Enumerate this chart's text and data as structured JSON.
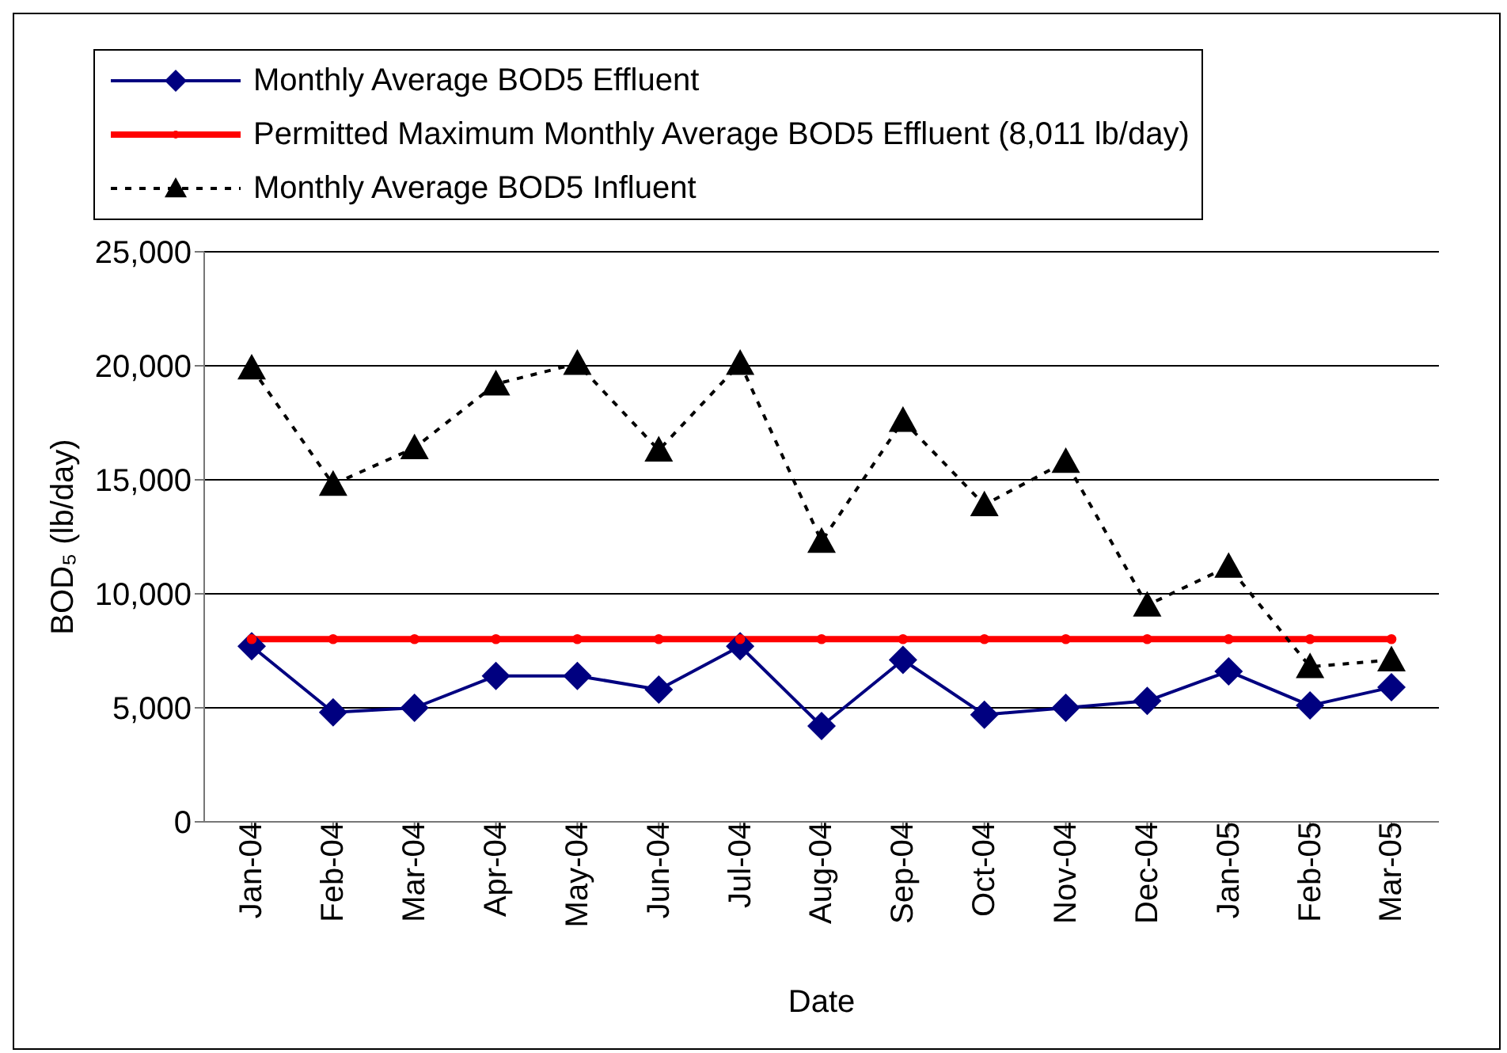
{
  "chart_data": {
    "type": "line",
    "xlabel": "Date",
    "ylabel": "BOD₅ (lb/day)",
    "categories": [
      "Jan-04",
      "Feb-04",
      "Mar-04",
      "Apr-04",
      "May-04",
      "Jun-04",
      "Jul-04",
      "Aug-04",
      "Sep-04",
      "Oct-04",
      "Nov-04",
      "Dec-04",
      "Jan-05",
      "Feb-05",
      "Mar-05"
    ],
    "series": [
      {
        "name": "Monthly Average BOD5 Effluent",
        "color": "#000080",
        "marker": "diamond",
        "line_style": "solid",
        "values": [
          7700,
          4800,
          5000,
          6400,
          6400,
          5800,
          7700,
          4200,
          7100,
          4700,
          5000,
          5300,
          6600,
          5100,
          5900
        ]
      },
      {
        "name": "Permitted Maximum Monthly Average BOD5 Effluent (8,011 lb/day)",
        "color": "#ff0000",
        "marker": "circle",
        "line_style": "solid",
        "values": [
          8011,
          8011,
          8011,
          8011,
          8011,
          8011,
          8011,
          8011,
          8011,
          8011,
          8011,
          8011,
          8011,
          8011,
          8011
        ]
      },
      {
        "name": "Monthly Average BOD5 Influent",
        "color": "#000000",
        "marker": "triangle",
        "line_style": "dashed",
        "values": [
          19900,
          14800,
          16400,
          19200,
          20100,
          16300,
          20100,
          12300,
          17600,
          13900,
          15800,
          9500,
          11200,
          6800,
          7100
        ]
      }
    ],
    "ylim": [
      0,
      25000
    ],
    "yticks": [
      {
        "value": 0,
        "label": "0"
      },
      {
        "value": 5000,
        "label": "5,000"
      },
      {
        "value": 10000,
        "label": "10,000"
      },
      {
        "value": 15000,
        "label": "15,000"
      },
      {
        "value": 20000,
        "label": "20,000"
      },
      {
        "value": 25000,
        "label": "25,000"
      }
    ],
    "grid": "y",
    "legend": "top"
  }
}
